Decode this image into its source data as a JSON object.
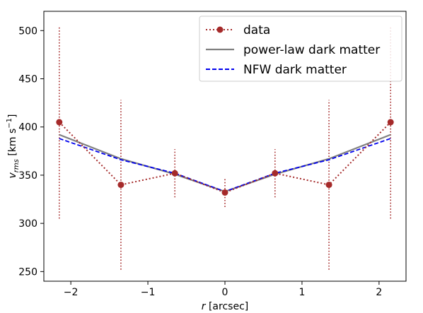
{
  "chart_data": {
    "type": "line",
    "xlabel_var": "r",
    "xlabel_unit": "[arcsec]",
    "ylabel_var": "v",
    "ylabel_sub": "rms",
    "ylabel_unit_pre": "[km s",
    "ylabel_unit_sup": "−1",
    "ylabel_unit_post": "]",
    "xlim": [
      -2.35,
      2.35
    ],
    "ylim": [
      240,
      520
    ],
    "xticks": [
      -2,
      -1,
      0,
      1,
      2
    ],
    "xtick_labels": [
      "−2",
      "−1",
      "0",
      "1",
      "2"
    ],
    "yticks": [
      250,
      300,
      350,
      400,
      450,
      500
    ],
    "ytick_labels": [
      "250",
      "300",
      "350",
      "400",
      "450",
      "500"
    ],
    "grid": false,
    "legend_position": "top-right",
    "series": [
      {
        "name": "data",
        "style": "dotted-markers",
        "color": "#a52a2a",
        "x": [
          -2.15,
          -1.35,
          -0.65,
          0.0,
          0.65,
          1.35,
          2.15
        ],
        "y": [
          405,
          340,
          352,
          332,
          352,
          340,
          405
        ],
        "yerr": [
          100,
          88,
          25,
          15,
          25,
          88,
          100
        ]
      },
      {
        "name": "power-law dark matter",
        "style": "solid",
        "color": "#808080",
        "x": [
          -2.15,
          -1.35,
          -0.65,
          0.0,
          0.65,
          1.35,
          2.15
        ],
        "y": [
          392,
          367,
          351,
          333,
          351,
          367,
          392
        ]
      },
      {
        "name": "NFW dark matter",
        "style": "dashed",
        "color": "#0000ee",
        "x": [
          -2.15,
          -1.35,
          -0.65,
          0.0,
          0.65,
          1.35,
          2.15
        ],
        "y": [
          388,
          366,
          352,
          333,
          352,
          366,
          388
        ]
      }
    ]
  }
}
